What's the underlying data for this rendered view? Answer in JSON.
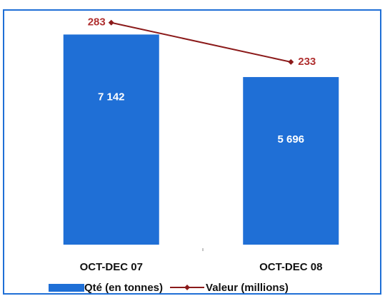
{
  "chart_data": {
    "type": "bar-line",
    "categories": [
      "OCT-DEC 07",
      "OCT-DEC 08"
    ],
    "series": [
      {
        "name": "Qté (en tonnes)",
        "type": "bar",
        "color": "#1f6fd6",
        "values": [
          7142,
          5696
        ],
        "value_labels": [
          "7 142",
          "5 696"
        ]
      },
      {
        "name": "Valeur (millions)",
        "type": "line",
        "axis": "y2",
        "color": "#8b1a1a",
        "values": [
          283,
          233
        ]
      }
    ],
    "ylim": [
      0,
      8000
    ],
    "y2lim": [
      0,
      300
    ]
  }
}
